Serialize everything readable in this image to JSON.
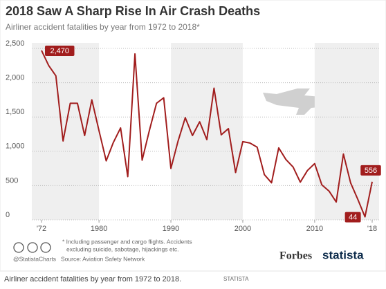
{
  "chart_data": {
    "type": "line",
    "title": "2018 Saw A Sharp Rise In Air Crash Deaths",
    "subtitle": "Airliner accident fatalities by year from 1972 to 2018*",
    "x": [
      1972,
      1973,
      1974,
      1975,
      1976,
      1977,
      1978,
      1979,
      1980,
      1981,
      1982,
      1983,
      1984,
      1985,
      1986,
      1987,
      1988,
      1989,
      1990,
      1991,
      1992,
      1993,
      1994,
      1995,
      1996,
      1997,
      1998,
      1999,
      2000,
      2001,
      2002,
      2003,
      2004,
      2005,
      2006,
      2007,
      2008,
      2009,
      2010,
      2011,
      2012,
      2013,
      2014,
      2015,
      2016,
      2017,
      2018
    ],
    "values": [
      2470,
      2250,
      2100,
      1150,
      1700,
      1700,
      1230,
      1750,
      1300,
      860,
      1130,
      1340,
      630,
      2420,
      870,
      1300,
      1700,
      1780,
      750,
      1150,
      1490,
      1230,
      1430,
      1170,
      1920,
      1240,
      1330,
      690,
      1140,
      1120,
      1060,
      660,
      540,
      1050,
      880,
      770,
      550,
      720,
      820,
      510,
      420,
      260,
      960,
      540,
      300,
      44,
      556
    ],
    "value_labels": [
      "2,470",
      null,
      null,
      null,
      null,
      null,
      null,
      null,
      null,
      null,
      null,
      null,
      null,
      null,
      null,
      null,
      null,
      null,
      null,
      null,
      null,
      null,
      null,
      null,
      null,
      null,
      null,
      null,
      null,
      null,
      null,
      null,
      null,
      null,
      null,
      null,
      null,
      null,
      null,
      null,
      null,
      null,
      null,
      null,
      null,
      "44",
      "556"
    ],
    "color": "#a11d1d",
    "xlim": [
      1972,
      2018
    ],
    "xticks": [
      {
        "value": 1972,
        "label": "'72"
      },
      1980,
      1990,
      2000,
      2010,
      {
        "value": 2018,
        "label": "'18"
      }
    ],
    "ylim": [
      0,
      2500
    ],
    "yticks": [
      0,
      500,
      {
        "value": 1000,
        "label": "1,000"
      },
      {
        "value": 1500,
        "label": "1,500"
      },
      {
        "value": 2000,
        "label": "2,000"
      },
      {
        "value": 2500,
        "label": "2,500"
      }
    ],
    "grid": true
  },
  "footer": {
    "footnote": [
      "* Including passenger and cargo flights. Accidents",
      "excluding suicide, sabotage, hijackings etc."
    ],
    "handle": "@StatistaCharts",
    "source": "Source: Aviation Safety Network",
    "brand1": "Forbes",
    "brand2": "statista"
  },
  "caption": {
    "text": "Airliner accident fatalities by year from 1972 to 2018.",
    "credit": "STATISTA"
  }
}
